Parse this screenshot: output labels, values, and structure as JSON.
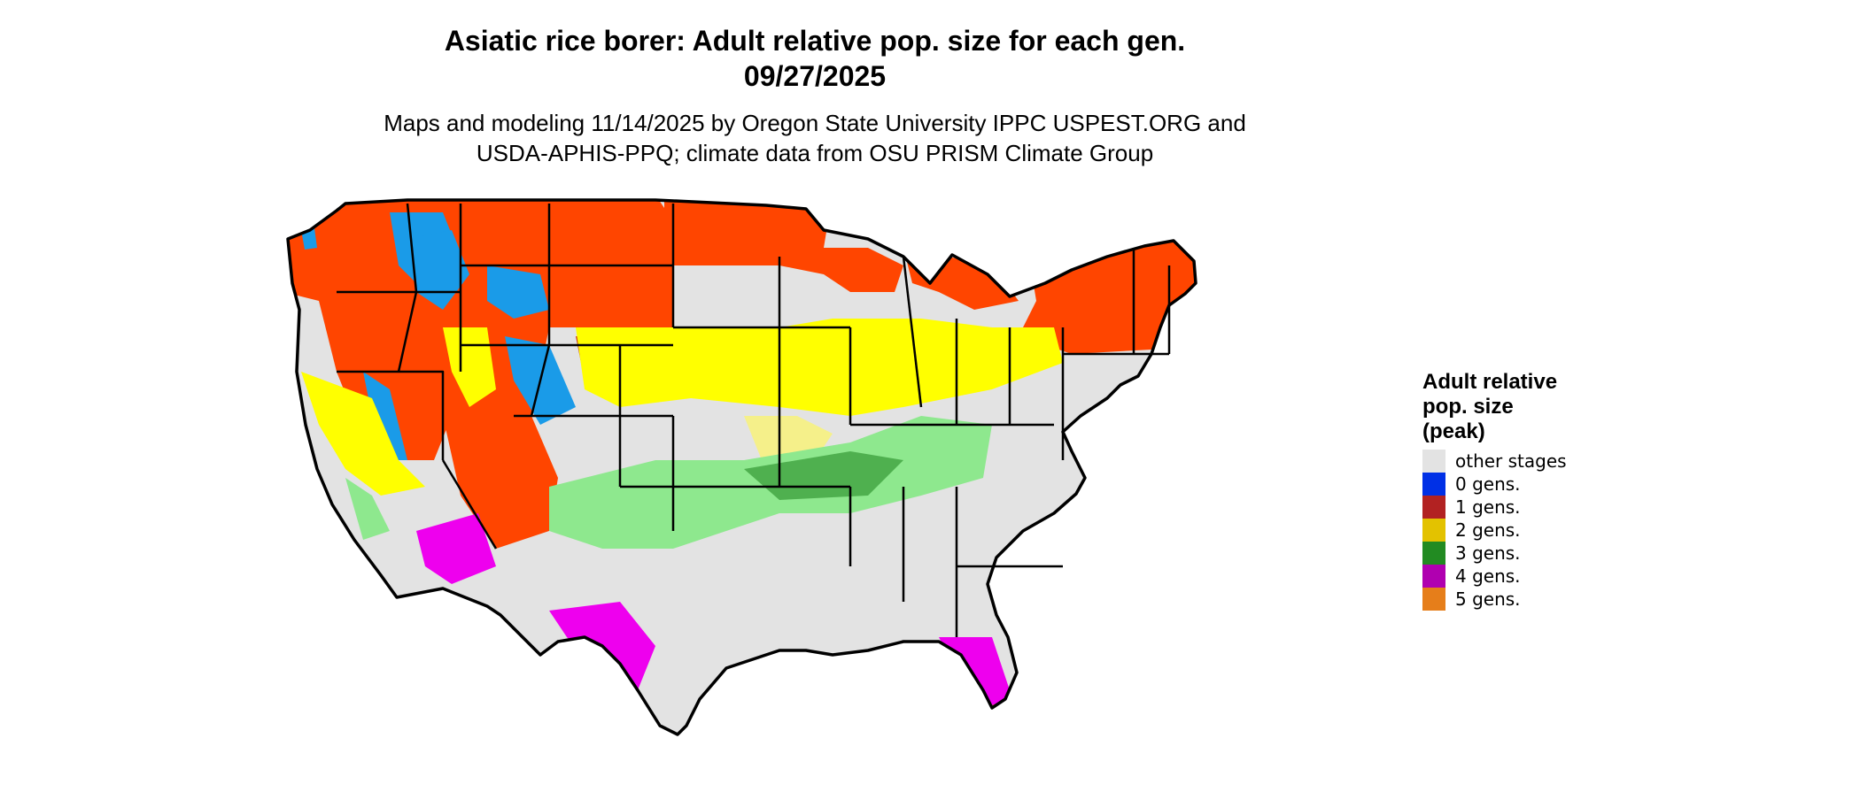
{
  "title_lines": [
    "Asiatic rice borer: Adult relative pop. size for each gen.",
    "09/27/2025"
  ],
  "subtitle_lines": [
    "Maps and modeling 11/14/2025 by Oregon State University IPPC USPEST.ORG and",
    "USDA-APHIS-PPQ; climate data from OSU PRISM Climate Group"
  ],
  "legend": {
    "title_lines": [
      "Adult relative",
      "pop. size",
      "(peak)"
    ],
    "items": [
      {
        "label": "other stages",
        "color": "#e3e3e3"
      },
      {
        "label": "0 gens.",
        "color": "#0030e6"
      },
      {
        "label": "1 gens.",
        "color": "#b22222"
      },
      {
        "label": "2 gens.",
        "color": "#e3c200"
      },
      {
        "label": "3 gens.",
        "color": "#228b22"
      },
      {
        "label": "4 gens.",
        "color": "#b000b0"
      },
      {
        "label": "5 gens.",
        "color": "#e67e1a"
      }
    ]
  },
  "map_colors": {
    "base": "#e3e3e3",
    "orange_red": "#ff4500",
    "dark_red": "#c83a12",
    "blue": "#1a9be8",
    "yellow": "#ffff00",
    "light_yellow": "#f5f08a",
    "light_green": "#8ee88e",
    "green": "#4fb04f",
    "magenta": "#ee00ee",
    "orange": "#f08a2a",
    "border": "#000000"
  }
}
